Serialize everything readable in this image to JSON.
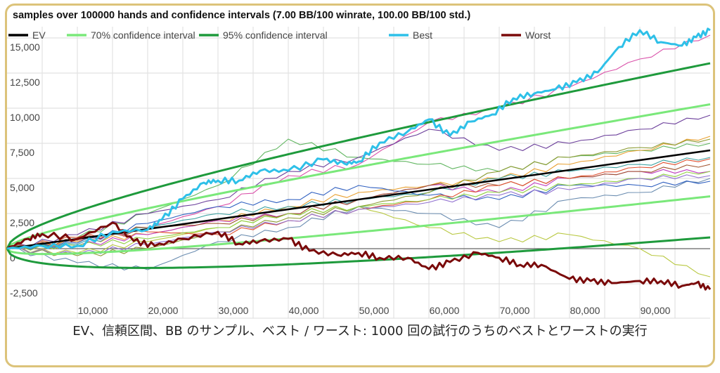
{
  "chart_data": {
    "type": "line",
    "title": "samples over 100000 hands and confidence intervals (7.00 BB/100 winrate, 100.00 BB/100 std.)",
    "xlabel": "",
    "ylabel": "",
    "xlim": [
      0,
      100000
    ],
    "ylim": [
      -3500,
      16500
    ],
    "grid": true,
    "legend_placement": "top",
    "x_ticks": [
      "10,000",
      "20,000",
      "30,000",
      "40,000",
      "50,000",
      "60,000",
      "70,000",
      "80,000",
      "90,000"
    ],
    "x_tick_values": [
      10000,
      20000,
      30000,
      40000,
      50000,
      60000,
      70000,
      80000,
      90000
    ],
    "y_ticks": [
      "15,000",
      "12,500",
      "10,000",
      "7,500",
      "5,000",
      "2,500",
      "0",
      "-2,500"
    ],
    "y_tick_values": [
      15000,
      12500,
      10000,
      7500,
      5000,
      2500,
      0,
      -2500
    ],
    "winrate_bb_per_100": 7.0,
    "std_bb_per_100": 100.0,
    "legend": [
      {
        "name": "EV",
        "color": "#000000"
      },
      {
        "name": "70% confidence interval",
        "color": "#7ae87a"
      },
      {
        "name": "95% confidence interval",
        "color": "#1e9a3c"
      },
      {
        "name": "Best",
        "color": "#2ec0e8"
      },
      {
        "name": "Worst",
        "color": "#7a0a0a"
      }
    ],
    "best": {
      "x": [
        0,
        5000,
        10000,
        15000,
        20000,
        22000,
        25000,
        28000,
        30000,
        33000,
        36000,
        40000,
        45000,
        48000,
        50000,
        53000,
        57000,
        60000,
        63000,
        66000,
        69000,
        72000,
        75000,
        78000,
        81000,
        84000,
        87000,
        90000,
        93000,
        96000,
        98000,
        100000
      ],
      "y": [
        0,
        200,
        200,
        1200,
        1350,
        2050,
        3550,
        4700,
        4850,
        4850,
        5550,
        5550,
        6350,
        6050,
        6200,
        7550,
        8350,
        9200,
        8050,
        9050,
        9550,
        10700,
        11050,
        11350,
        11850,
        12550,
        14350,
        15550,
        14700,
        14450,
        15050,
        15550
      ]
    },
    "worst": {
      "x": [
        0,
        3000,
        5000,
        10000,
        15000,
        18000,
        21000,
        25000,
        30000,
        33000,
        36000,
        40000,
        43000,
        47000,
        50000,
        53000,
        57000,
        60000,
        63000,
        67000,
        70000,
        73000,
        76000,
        80000,
        83000,
        86000,
        90000,
        93000,
        96000,
        98000,
        100000
      ],
      "y": [
        0,
        700,
        1050,
        700,
        1850,
        550,
        200,
        700,
        1200,
        350,
        550,
        700,
        -150,
        -450,
        -300,
        -650,
        -650,
        -1450,
        -950,
        -300,
        -650,
        -1150,
        -1150,
        -2150,
        -2300,
        -2450,
        -2300,
        -2300,
        -2650,
        -2450,
        -2900
      ]
    },
    "samples_x": [
      0,
      10000,
      20000,
      30000,
      40000,
      50000,
      60000,
      70000,
      80000,
      90000,
      100000
    ],
    "samples": [
      {
        "color": "#d94fa8",
        "y": [
          0,
          500,
          1500,
          3000,
          5200,
          6000,
          9000,
          10000,
          11500,
          13500,
          15200
        ]
      },
      {
        "color": "#5fb55f",
        "y": [
          0,
          800,
          2500,
          4500,
          7800,
          6500,
          6000,
          5500,
          6500,
          7000,
          7500
        ]
      },
      {
        "color": "#b8c840",
        "y": [
          0,
          -300,
          500,
          1500,
          2500,
          3000,
          1500,
          500,
          1000,
          0,
          -2000
        ]
      },
      {
        "color": "#6a3d9a",
        "y": [
          0,
          1000,
          2500,
          3500,
          5500,
          6500,
          8500,
          7000,
          7500,
          8500,
          9500
        ]
      },
      {
        "color": "#e8a030",
        "y": [
          0,
          500,
          1000,
          2000,
          3000,
          4000,
          4500,
          5000,
          6000,
          7000,
          8000
        ]
      },
      {
        "color": "#6a8cb0",
        "y": [
          0,
          -1000,
          -1500,
          500,
          1500,
          3000,
          2500,
          1500,
          3500,
          4000,
          5000
        ]
      },
      {
        "color": "#3aa0a0",
        "y": [
          0,
          300,
          1500,
          2500,
          3000,
          3500,
          4000,
          5000,
          5500,
          6000,
          6500
        ]
      },
      {
        "color": "#c040c0",
        "y": [
          0,
          200,
          1000,
          2000,
          2500,
          3500,
          4500,
          4000,
          5000,
          5500,
          5500
        ]
      },
      {
        "color": "#a0522d",
        "y": [
          0,
          600,
          1500,
          1800,
          2500,
          3500,
          4500,
          4500,
          5000,
          5500,
          6000
        ]
      },
      {
        "color": "#8a9a30",
        "y": [
          0,
          -500,
          0,
          1200,
          2200,
          3000,
          4000,
          5500,
          6500,
          7200,
          7800
        ]
      },
      {
        "color": "#3060c0",
        "y": [
          0,
          400,
          1800,
          3000,
          3500,
          4500,
          3800,
          3500,
          4500,
          4500,
          4800
        ]
      },
      {
        "color": "#e05030",
        "y": [
          0,
          800,
          1200,
          1000,
          2000,
          2800,
          3500,
          4500,
          5000,
          5800,
          6400
        ]
      },
      {
        "color": "#90d040",
        "y": [
          0,
          200,
          700,
          1500,
          2500,
          3000,
          3500,
          4000,
          4500,
          5000,
          5500
        ]
      },
      {
        "color": "#9070d0",
        "y": [
          0,
          -400,
          300,
          1200,
          2000,
          2800,
          3300,
          3800,
          4200,
          5000,
          5200
        ]
      }
    ]
  },
  "caption": "EV、信頼区間、BB のサンプル、ベスト / ワースト: 1000 回の試行のうちのベストとワーストの実行"
}
